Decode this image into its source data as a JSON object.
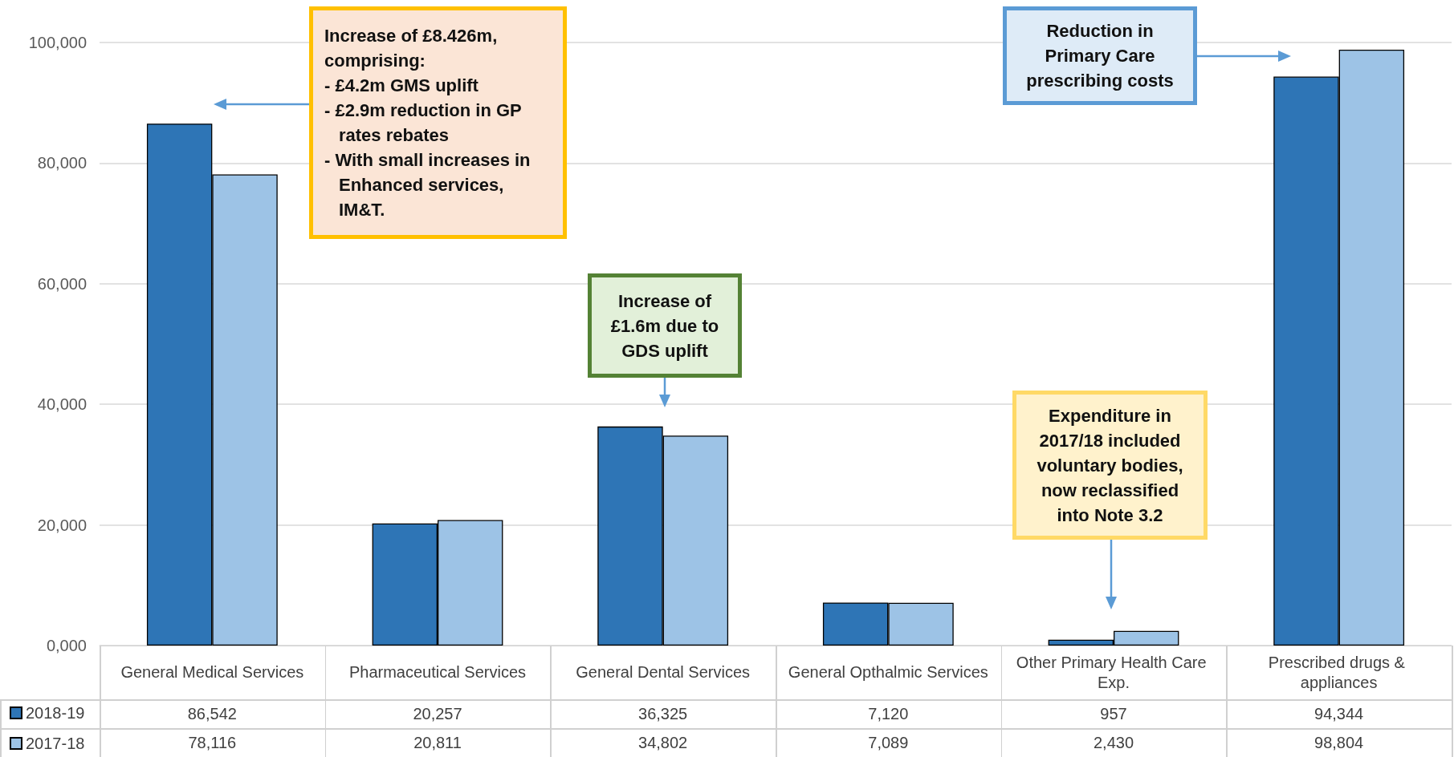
{
  "chart_data": {
    "type": "bar",
    "categories": [
      "General Medical Services",
      "Pharmaceutical Services",
      "General Dental Services",
      "General Opthalmic Services",
      "Other Primary Health Care Exp.",
      "Prescribed drugs & appliances"
    ],
    "series": [
      {
        "name": "2018-19",
        "color": "#2e75b6",
        "values": [
          86542,
          20257,
          36325,
          7120,
          957,
          94344
        ],
        "value_labels": [
          "86,542",
          "20,257",
          "36,325",
          "7,120",
          "957",
          "94,344"
        ]
      },
      {
        "name": "2017-18",
        "color": "#9dc3e6",
        "values": [
          78116,
          20811,
          34802,
          7089,
          2430,
          98804
        ],
        "value_labels": [
          "78,116",
          "20,811",
          "34,802",
          "7,089",
          "2,430",
          "98,804"
        ]
      }
    ],
    "ylim": [
      0,
      100000
    ],
    "yticks": [
      {
        "value": 0,
        "label": "0,000"
      },
      {
        "value": 20000,
        "label": "20,000"
      },
      {
        "value": 40000,
        "label": "40,000"
      },
      {
        "value": 60000,
        "label": "60,000"
      },
      {
        "value": 80000,
        "label": "80,000"
      },
      {
        "value": 100000,
        "label": "100,000"
      }
    ],
    "grid": "y",
    "legend": "bottom left",
    "annotations": [
      "Increase of £8.426m, comprising:\n- £4.2m GMS uplift\n- £2.9m reduction in GP rates rebates\n- With small increases in Enhanced services, IM&T.",
      "Increase of £1.6m due to GDS uplift",
      "Expenditure in 2017/18 included voluntary bodies, now reclassified into Note 3.2",
      "Reduction in Primary Care prescribing costs"
    ]
  }
}
